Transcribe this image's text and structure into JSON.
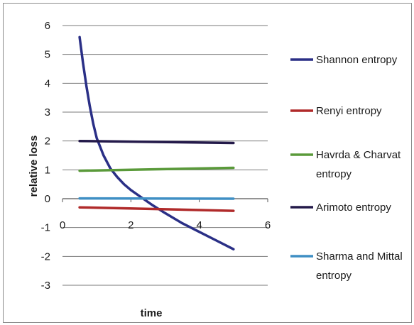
{
  "chart_data": {
    "type": "line",
    "title": "",
    "xlabel": "time",
    "ylabel": "relative loss",
    "xlim": [
      0,
      6
    ],
    "ylim": [
      -3,
      6
    ],
    "x_ticks": [
      "0",
      "2",
      "4",
      "6"
    ],
    "y_ticks": [
      "6",
      "5",
      "4",
      "3",
      "2",
      "1",
      "0",
      "-1",
      "-2",
      "-3"
    ],
    "grid": "horizontal",
    "legend_position": "right",
    "series": [
      {
        "name": "Shannon entropy",
        "color": "#2a2f86",
        "x": [
          0.5,
          0.6,
          0.7,
          0.8,
          0.9,
          1.0,
          1.2,
          1.4,
          1.6,
          1.8,
          2.0,
          2.3,
          2.6,
          3.0,
          3.5,
          4.0,
          4.5,
          5.0
        ],
        "y": [
          5.6,
          4.7,
          3.9,
          3.2,
          2.6,
          2.1,
          1.5,
          1.05,
          0.75,
          0.5,
          0.3,
          0.05,
          -0.2,
          -0.5,
          -0.85,
          -1.15,
          -1.45,
          -1.75
        ]
      },
      {
        "name": "Renyi entropy",
        "color": "#b02a2a",
        "x": [
          0.5,
          5.0
        ],
        "y": [
          -0.3,
          -0.42
        ]
      },
      {
        "name": "Havrda & Charvat entropy",
        "color": "#5a9a3a",
        "x": [
          0.5,
          5.0
        ],
        "y": [
          0.97,
          1.07
        ]
      },
      {
        "name": "Arimoto entropy",
        "color": "#241a4a",
        "x": [
          0.5,
          5.0
        ],
        "y": [
          2.0,
          1.93
        ]
      },
      {
        "name": "Sharma and Mittal entropy",
        "color": "#3f8fc4",
        "x": [
          0.5,
          5.0
        ],
        "y": [
          0.01,
          0.0
        ]
      }
    ]
  },
  "legend": [
    {
      "lines": [
        "Shannon entropy"
      ],
      "color": "#2a2f86"
    },
    {
      "lines": [
        "Renyi entropy"
      ],
      "color": "#b02a2a"
    },
    {
      "lines": [
        "Havrda & Charvat",
        "entropy"
      ],
      "color": "#5a9a3a"
    },
    {
      "lines": [
        "Arimoto entropy"
      ],
      "color": "#241a4a"
    },
    {
      "lines": [
        "Sharma and Mittal",
        "entropy"
      ],
      "color": "#3f8fc4"
    }
  ]
}
